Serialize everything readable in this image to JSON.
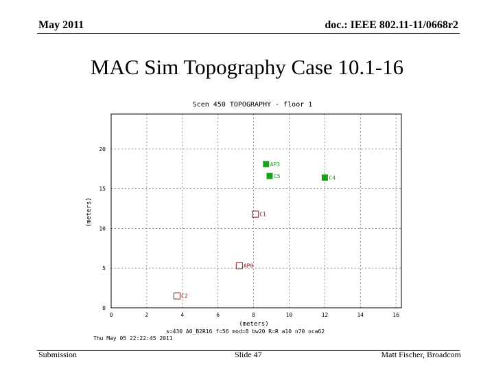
{
  "header": {
    "date": "May 2011",
    "doc_id": "doc.: IEEE 802.11-11/0668r2"
  },
  "slide": {
    "title": "MAC Sim Topography Case 10.1-16"
  },
  "chart_data": {
    "type": "scatter",
    "title": "Scen 450 TOPOGRAPHY - floor 1",
    "xlabel": "(meters)",
    "ylabel": "(meters)",
    "xlim": [
      0,
      16.3
    ],
    "ylim": [
      0,
      24.4
    ],
    "xticks": [
      0,
      2,
      4,
      6,
      8,
      10,
      12,
      14,
      16
    ],
    "yticks": [
      0,
      5,
      10,
      15,
      20
    ],
    "ytick_labels": [
      "0",
      "5",
      "10",
      "15",
      "20"
    ],
    "grid": true,
    "points": [
      {
        "label": "AP3",
        "x": 8.7,
        "y": 18.1,
        "style": "filled",
        "color": "#1aa01a"
      },
      {
        "label": "C5",
        "x": 8.9,
        "y": 16.6,
        "style": "filled",
        "color": "#1aa01a"
      },
      {
        "label": "C4",
        "x": 12.0,
        "y": 16.4,
        "style": "filled",
        "color": "#1aa01a"
      },
      {
        "label": "C1",
        "x": 8.1,
        "y": 11.8,
        "style": "hollow",
        "color": "#8a1a1a"
      },
      {
        "label": "AP0",
        "x": 7.2,
        "y": 5.3,
        "style": "hollow",
        "color": "#8a1a1a"
      },
      {
        "label": "C2",
        "x": 3.7,
        "y": 1.5,
        "style": "hollow",
        "color": "#8a1a1a"
      }
    ],
    "footnote_params": "s=430 A0_B2R16 f=56 mod=8 bw20 R=R a10 n70 oca62",
    "footnote_date": "Thu May 05 22:22:45 2011"
  },
  "footer": {
    "left": "Submission",
    "center": "Slide 47",
    "right": "Matt Fischer, Broadcom"
  }
}
